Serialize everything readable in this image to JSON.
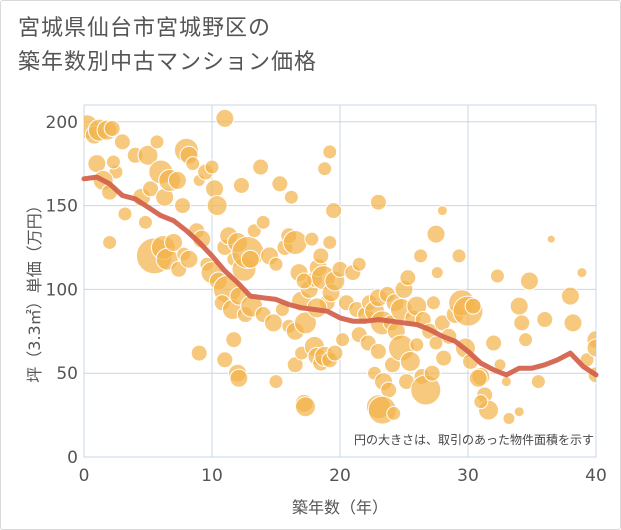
{
  "title_line1": "宮城県仙台市宮城野区の",
  "title_line2": "築年数別中古マンション価格",
  "colors": {
    "bubble_fill": "#f2b44c",
    "bubble_stroke": "#ffffff",
    "line": "#d2604a",
    "grid": "#c9d7e6",
    "text": "#555555"
  },
  "chart_data": {
    "type": "scatter",
    "xlabel": "築年数（年）",
    "ylabel": "坪（3.3㎡）単価（万円）",
    "xlim": [
      0,
      40
    ],
    "ylim": [
      0,
      210
    ],
    "x_ticks": [
      "0",
      "10",
      "20",
      "30",
      "40"
    ],
    "y_ticks": [
      "0",
      "50",
      "100",
      "150",
      "200"
    ],
    "annotation": "円の大きさは、取引のあった物件面積を示す",
    "grid": true,
    "bubbles": [
      [
        0.2,
        197,
        12
      ],
      [
        0.8,
        192,
        9
      ],
      [
        1.2,
        195,
        11
      ],
      [
        1.8,
        195,
        10
      ],
      [
        2.2,
        196,
        8
      ],
      [
        2.5,
        170,
        7
      ],
      [
        3,
        188,
        8
      ],
      [
        1,
        175,
        9
      ],
      [
        1.5,
        165,
        10
      ],
      [
        2,
        158,
        8
      ],
      [
        2.3,
        176,
        7
      ],
      [
        3.2,
        145,
        7
      ],
      [
        4,
        180,
        8
      ],
      [
        4.5,
        155,
        9
      ],
      [
        5,
        180,
        10
      ],
      [
        5.2,
        160,
        8
      ],
      [
        5.7,
        188,
        7
      ],
      [
        6,
        170,
        12
      ],
      [
        6.3,
        155,
        9
      ],
      [
        6.7,
        165,
        11
      ],
      [
        7.3,
        165,
        9
      ],
      [
        7.7,
        150,
        8
      ],
      [
        8,
        183,
        12
      ],
      [
        8.2,
        180,
        9
      ],
      [
        8.5,
        175,
        7
      ],
      [
        9,
        165,
        6
      ],
      [
        9.5,
        170,
        8
      ],
      [
        10,
        173,
        7
      ],
      [
        10.2,
        160,
        9
      ],
      [
        10.4,
        150,
        10
      ],
      [
        11,
        202,
        9
      ],
      [
        2,
        128,
        7
      ],
      [
        4.8,
        140,
        7
      ],
      [
        5.5,
        120,
        18
      ],
      [
        6.2,
        125,
        12
      ],
      [
        6.5,
        118,
        11
      ],
      [
        7,
        128,
        9
      ],
      [
        7.4,
        112,
        8
      ],
      [
        7.8,
        121,
        7
      ],
      [
        8.2,
        118,
        9
      ],
      [
        8.8,
        135,
        8
      ],
      [
        9.2,
        130,
        9
      ],
      [
        9.6,
        115,
        7
      ],
      [
        10,
        110,
        11
      ],
      [
        10.5,
        105,
        9
      ],
      [
        11,
        125,
        8
      ],
      [
        11.3,
        132,
        9
      ],
      [
        11.7,
        118,
        7
      ],
      [
        12,
        128,
        10
      ],
      [
        12.5,
        112,
        12
      ],
      [
        12.8,
        122,
        16
      ],
      [
        13,
        118,
        9
      ],
      [
        13.3,
        135,
        7
      ],
      [
        14,
        140,
        7
      ],
      [
        14.5,
        120,
        9
      ],
      [
        15,
        115,
        7
      ],
      [
        12.3,
        162,
        8
      ],
      [
        13.8,
        173,
        8
      ],
      [
        15.3,
        163,
        8
      ],
      [
        15.7,
        125,
        8
      ],
      [
        16.2,
        155,
        7
      ],
      [
        16,
        132,
        8
      ],
      [
        16.5,
        128,
        12
      ],
      [
        11.2,
        100,
        14
      ],
      [
        10.8,
        92,
        8
      ],
      [
        11.6,
        88,
        10
      ],
      [
        12.1,
        96,
        9
      ],
      [
        12.6,
        85,
        8
      ],
      [
        13.1,
        90,
        11
      ],
      [
        14,
        85,
        8
      ],
      [
        14.8,
        80,
        9
      ],
      [
        15.5,
        88,
        7
      ],
      [
        16,
        78,
        7
      ],
      [
        16.5,
        75,
        9
      ],
      [
        17,
        93,
        10
      ],
      [
        17.3,
        80,
        11
      ],
      [
        17.6,
        100,
        9
      ],
      [
        18,
        106,
        8
      ],
      [
        18.3,
        113,
        9
      ],
      [
        18.7,
        107,
        12
      ],
      [
        19,
        92,
        8
      ],
      [
        19.3,
        98,
        9
      ],
      [
        19.6,
        105,
        10
      ],
      [
        20,
        112,
        8
      ],
      [
        18.2,
        89,
        10
      ],
      [
        18.5,
        120,
        8
      ],
      [
        19.2,
        128,
        7
      ],
      [
        18.8,
        172,
        7
      ],
      [
        19.5,
        147,
        8
      ],
      [
        19.2,
        182,
        7
      ],
      [
        16.8,
        110,
        9
      ],
      [
        17.2,
        105,
        8
      ],
      [
        17.8,
        130,
        7
      ],
      [
        9,
        62,
        8
      ],
      [
        11,
        58,
        8
      ],
      [
        11.7,
        70,
        8
      ],
      [
        12,
        50,
        9
      ],
      [
        12.1,
        47,
        9
      ],
      [
        15,
        45,
        7
      ],
      [
        16.5,
        55,
        8
      ],
      [
        17,
        62,
        7
      ],
      [
        17.2,
        32,
        9
      ],
      [
        17.3,
        30,
        10
      ],
      [
        18,
        66,
        10
      ],
      [
        18.2,
        60,
        9
      ],
      [
        18.5,
        56,
        8
      ],
      [
        18.8,
        60,
        10
      ],
      [
        19.2,
        58,
        8
      ],
      [
        19.6,
        62,
        8
      ],
      [
        20.2,
        70,
        7
      ],
      [
        21,
        110,
        8
      ],
      [
        20.5,
        92,
        8
      ],
      [
        21.3,
        88,
        8
      ],
      [
        21.5,
        73,
        8
      ],
      [
        22,
        85,
        8
      ],
      [
        22.3,
        92,
        8
      ],
      [
        22.7,
        87,
        10
      ],
      [
        23,
        95,
        9
      ],
      [
        23.3,
        80,
        12
      ],
      [
        23.7,
        97,
        8
      ],
      [
        24,
        80,
        8
      ],
      [
        24.3,
        92,
        9
      ],
      [
        24.8,
        88,
        11
      ],
      [
        25,
        100,
        9
      ],
      [
        25.3,
        107,
        8
      ],
      [
        25.7,
        83,
        8
      ],
      [
        26,
        90,
        10
      ],
      [
        26.5,
        82,
        8
      ],
      [
        27,
        75,
        8
      ],
      [
        27.3,
        92,
        7
      ],
      [
        27.6,
        110,
        6
      ],
      [
        28,
        80,
        8
      ],
      [
        28.5,
        72,
        8
      ],
      [
        29,
        85,
        9
      ],
      [
        29.5,
        92,
        13
      ],
      [
        29.8,
        65,
        10
      ],
      [
        30,
        87,
        15
      ],
      [
        30.2,
        57,
        8
      ],
      [
        21.5,
        115,
        7
      ],
      [
        22.2,
        68,
        8
      ],
      [
        22.7,
        50,
        7
      ],
      [
        23,
        63,
        8
      ],
      [
        23.4,
        45,
        9
      ],
      [
        23.8,
        40,
        8
      ],
      [
        24.1,
        55,
        8
      ],
      [
        24.4,
        75,
        9
      ],
      [
        24.8,
        65,
        13
      ],
      [
        25.2,
        45,
        8
      ],
      [
        25.5,
        57,
        10
      ],
      [
        26,
        67,
        7
      ],
      [
        26.4,
        48,
        8
      ],
      [
        26.7,
        40,
        15
      ],
      [
        27.2,
        50,
        8
      ],
      [
        27.5,
        68,
        7
      ],
      [
        28.1,
        59,
        8
      ],
      [
        23,
        30,
        12
      ],
      [
        23.3,
        28,
        14
      ],
      [
        24.2,
        26,
        7
      ],
      [
        23,
        152,
        8
      ],
      [
        26.3,
        120,
        7
      ],
      [
        27.5,
        133,
        9
      ],
      [
        28,
        147,
        5
      ],
      [
        29.3,
        120,
        7
      ],
      [
        30.4,
        90,
        8
      ],
      [
        31,
        48,
        9
      ],
      [
        31.3,
        37,
        8
      ],
      [
        31.6,
        28,
        10
      ],
      [
        30.8,
        47,
        9
      ],
      [
        31,
        33,
        7
      ],
      [
        32,
        68,
        8
      ],
      [
        32.3,
        108,
        7
      ],
      [
        32.5,
        55,
        6
      ],
      [
        33,
        45,
        5
      ],
      [
        33.2,
        23,
        6
      ],
      [
        34,
        27,
        5
      ],
      [
        34,
        90,
        9
      ],
      [
        34.2,
        80,
        8
      ],
      [
        34.8,
        105,
        9
      ],
      [
        34.5,
        70,
        7
      ],
      [
        35.5,
        45,
        7
      ],
      [
        36,
        82,
        8
      ],
      [
        36.5,
        130,
        4
      ],
      [
        38,
        96,
        9
      ],
      [
        38.2,
        80,
        9
      ],
      [
        38.9,
        110,
        5
      ],
      [
        39.3,
        58,
        7
      ],
      [
        40,
        70,
        9
      ],
      [
        40,
        65,
        9
      ],
      [
        40,
        49,
        8
      ]
    ],
    "trend": {
      "name": "",
      "x": [
        0,
        1,
        2,
        3,
        4,
        5,
        6,
        7,
        8,
        9,
        10,
        11,
        12,
        13,
        14,
        15,
        16,
        17,
        18,
        19,
        20,
        21,
        22,
        23,
        24,
        25,
        26,
        27,
        28,
        29,
        30,
        31,
        32,
        33,
        34,
        35,
        36,
        37,
        38,
        39,
        40
      ],
      "y": [
        166,
        167,
        163,
        156,
        154,
        149,
        144,
        141,
        135,
        128,
        120,
        111,
        104,
        96,
        95,
        94,
        91,
        89,
        88,
        87,
        83,
        81,
        81,
        82,
        81,
        80,
        79,
        76,
        72,
        69,
        63,
        56,
        52,
        49,
        53,
        53,
        55,
        58,
        62,
        54,
        49
      ]
    }
  }
}
